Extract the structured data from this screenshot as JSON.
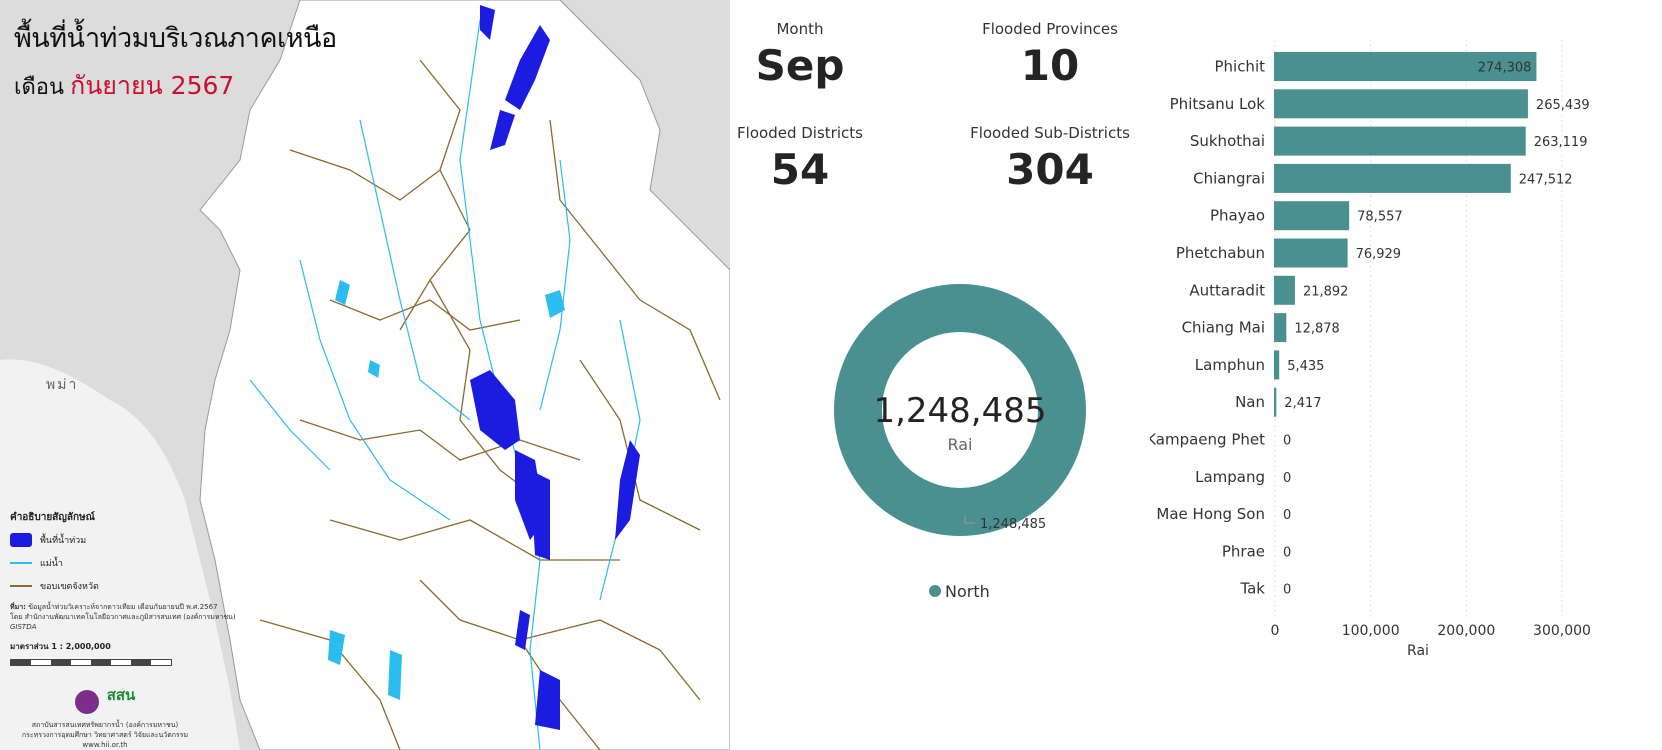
{
  "map": {
    "title": "พื้นที่น้ำท่วมบริเวณภาคเหนือ",
    "subtitle_prefix": "เดือน",
    "subtitle_highlight": "กันยายน 2567",
    "country_label": "พม่า",
    "legend_title": "คำอธิบายสัญลักษณ์",
    "legend_flood": "พื้นที่น้ำท่วม",
    "legend_river": "แม่น้ำ",
    "legend_border": "ขอบเขตจังหวัด",
    "source_label": "ที่มา:",
    "source_text_1": "ข้อมูลน้ำท่วมวิเคราะห์จากดาวเทียม เดือนกันยายนปี พ.ศ.2567",
    "source_text_2": "โดย สำนักงานพัฒนาเทคโนโลยีอวกาศและภูมิสารสนเทศ (องค์การมหาชน)",
    "scale_text": "มาตราส่วน 1 : 2,000,000",
    "gistda": "GISTDA",
    "logo_text": "สสน",
    "agency_1": "สถาบันสารสนเทศทรัพยากรน้ำ (องค์การมหาชน)",
    "agency_2": "กระทรวงการอุดมศึกษา วิทยาศาสตร์ วิจัยและนวัตกรรม",
    "website": "www.hii.or.th",
    "colors": {
      "flood": "#1c1ce0",
      "river": "#2bbcf0",
      "border": "#8a6a2e",
      "title_red": "#c8102e"
    }
  },
  "cards": {
    "month": {
      "label": "Month",
      "value": "Sep"
    },
    "provinces": {
      "label": "Flooded Provinces",
      "value": "10"
    },
    "districts": {
      "label": "Flooded Districts",
      "value": "54"
    },
    "subdistricts": {
      "label": "Flooded Sub-Districts",
      "value": "304"
    }
  },
  "donut": {
    "total": "1,248,485",
    "unit": "Rai",
    "slice_label": "1,248,485",
    "legend": "North",
    "color": "#4a9090"
  },
  "chart_data": {
    "type": "bar",
    "orientation": "horizontal",
    "categories": [
      "Phichit",
      "Phitsanu Lok",
      "Sukhothai",
      "Chiangrai",
      "Phayao",
      "Phetchabun",
      "Auttaradit",
      "Chiang Mai",
      "Lamphun",
      "Nan",
      "Kampaeng Phet",
      "Lampang",
      "Mae Hong Son",
      "Phrae",
      "Tak"
    ],
    "values": [
      274308,
      265439,
      263119,
      247512,
      78557,
      76929,
      21892,
      12878,
      5435,
      2417,
      0,
      0,
      0,
      0,
      0
    ],
    "value_labels": [
      "274,308",
      "265,439",
      "263,119",
      "247,512",
      "78,557",
      "76,929",
      "21,892",
      "12,878",
      "5,435",
      "2,417",
      "0",
      "0",
      "0",
      "0",
      "0"
    ],
    "xlabel": "Rai",
    "xlim": [
      0,
      300000
    ],
    "xticks": [
      0,
      100000,
      200000,
      300000
    ],
    "xtick_labels": [
      "0",
      "100,000",
      "200,000",
      "300,000"
    ],
    "color": "#4a9090",
    "grid": true
  }
}
